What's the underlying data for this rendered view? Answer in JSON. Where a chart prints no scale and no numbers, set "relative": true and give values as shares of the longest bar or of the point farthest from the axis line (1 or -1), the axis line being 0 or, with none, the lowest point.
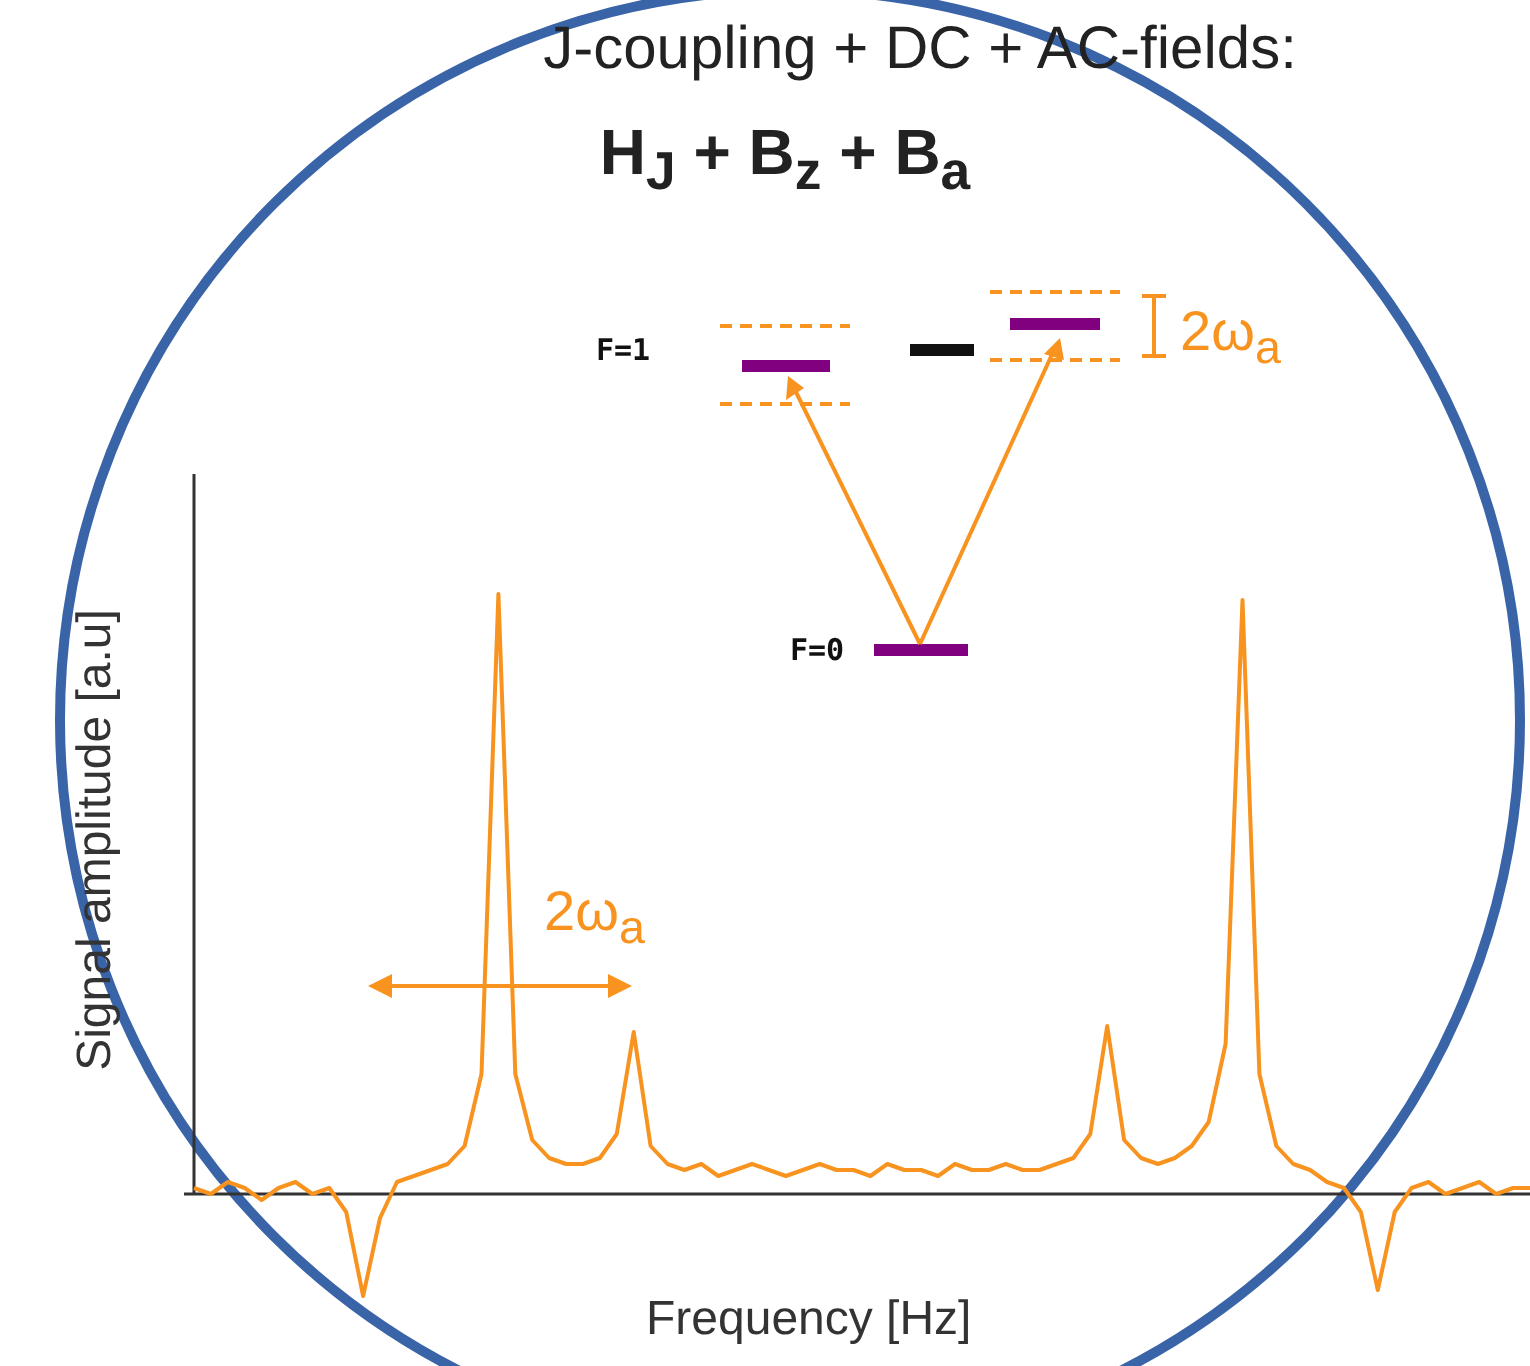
{
  "chart_data": {
    "type": "line",
    "relative": true,
    "title": "J-coupling + DC + AC-fields:",
    "subtitle": "H$_{J}$ + B$_{z}$ + B$_{a}$",
    "xlabel": "Frequency [Hz]",
    "ylabel": "Signal amplitude [a.u]",
    "annotations": [
      "F=1",
      "F=0",
      "2ω$_{a}$",
      "2ω$_{a}$"
    ],
    "categories": [
      null,
      null,
      null,
      null,
      null,
      null,
      null,
      null,
      null,
      null,
      null,
      null,
      null,
      null,
      null,
      null,
      null,
      null,
      null,
      null,
      null,
      null,
      null,
      null,
      null,
      null,
      null,
      null,
      null,
      null,
      null,
      null,
      null,
      null,
      null,
      null,
      null,
      null,
      null,
      null,
      null,
      null,
      null,
      null,
      null,
      null,
      null,
      null,
      null,
      null,
      null,
      null,
      null,
      null,
      null,
      null,
      null,
      null,
      null,
      null,
      null,
      null,
      null,
      null,
      null,
      null,
      null,
      null,
      null,
      null,
      null,
      null,
      null,
      null,
      null,
      null,
      null,
      null,
      null,
      null
    ],
    "series": [
      {
        "color": "#f7931e",
        "values": [
          0.01,
          0,
          0.02,
          0.01,
          -0.01,
          0.01,
          0.02,
          0,
          0.01,
          -0.03,
          -0.17,
          -0.04,
          0.02,
          0.03,
          0.04,
          0.05,
          0.08,
          0.2,
          1,
          0.2,
          0.09,
          0.06,
          0.05,
          0.05,
          0.06,
          0.1,
          0.27,
          0.08,
          0.05,
          0.04,
          0.05,
          0.03,
          0.04,
          0.05,
          0.04,
          0.03,
          0.04,
          0.05,
          0.04,
          0.04,
          0.03,
          0.05,
          0.04,
          0.04,
          0.03,
          0.05,
          0.04,
          0.04,
          0.05,
          0.04,
          0.04,
          0.05,
          0.06,
          0.1,
          0.28,
          0.09,
          0.06,
          0.05,
          0.06,
          0.08,
          0.12,
          0.25,
          0.99,
          0.2,
          0.08,
          0.05,
          0.04,
          0.02,
          0.01,
          -0.03,
          -0.16,
          -0.03,
          0.01,
          0.02,
          0,
          0.01,
          0.02,
          0,
          0.01,
          0.01
        ]
      }
    ],
    "legend": false,
    "marker": "none",
    "line_style": "solid"
  }
}
